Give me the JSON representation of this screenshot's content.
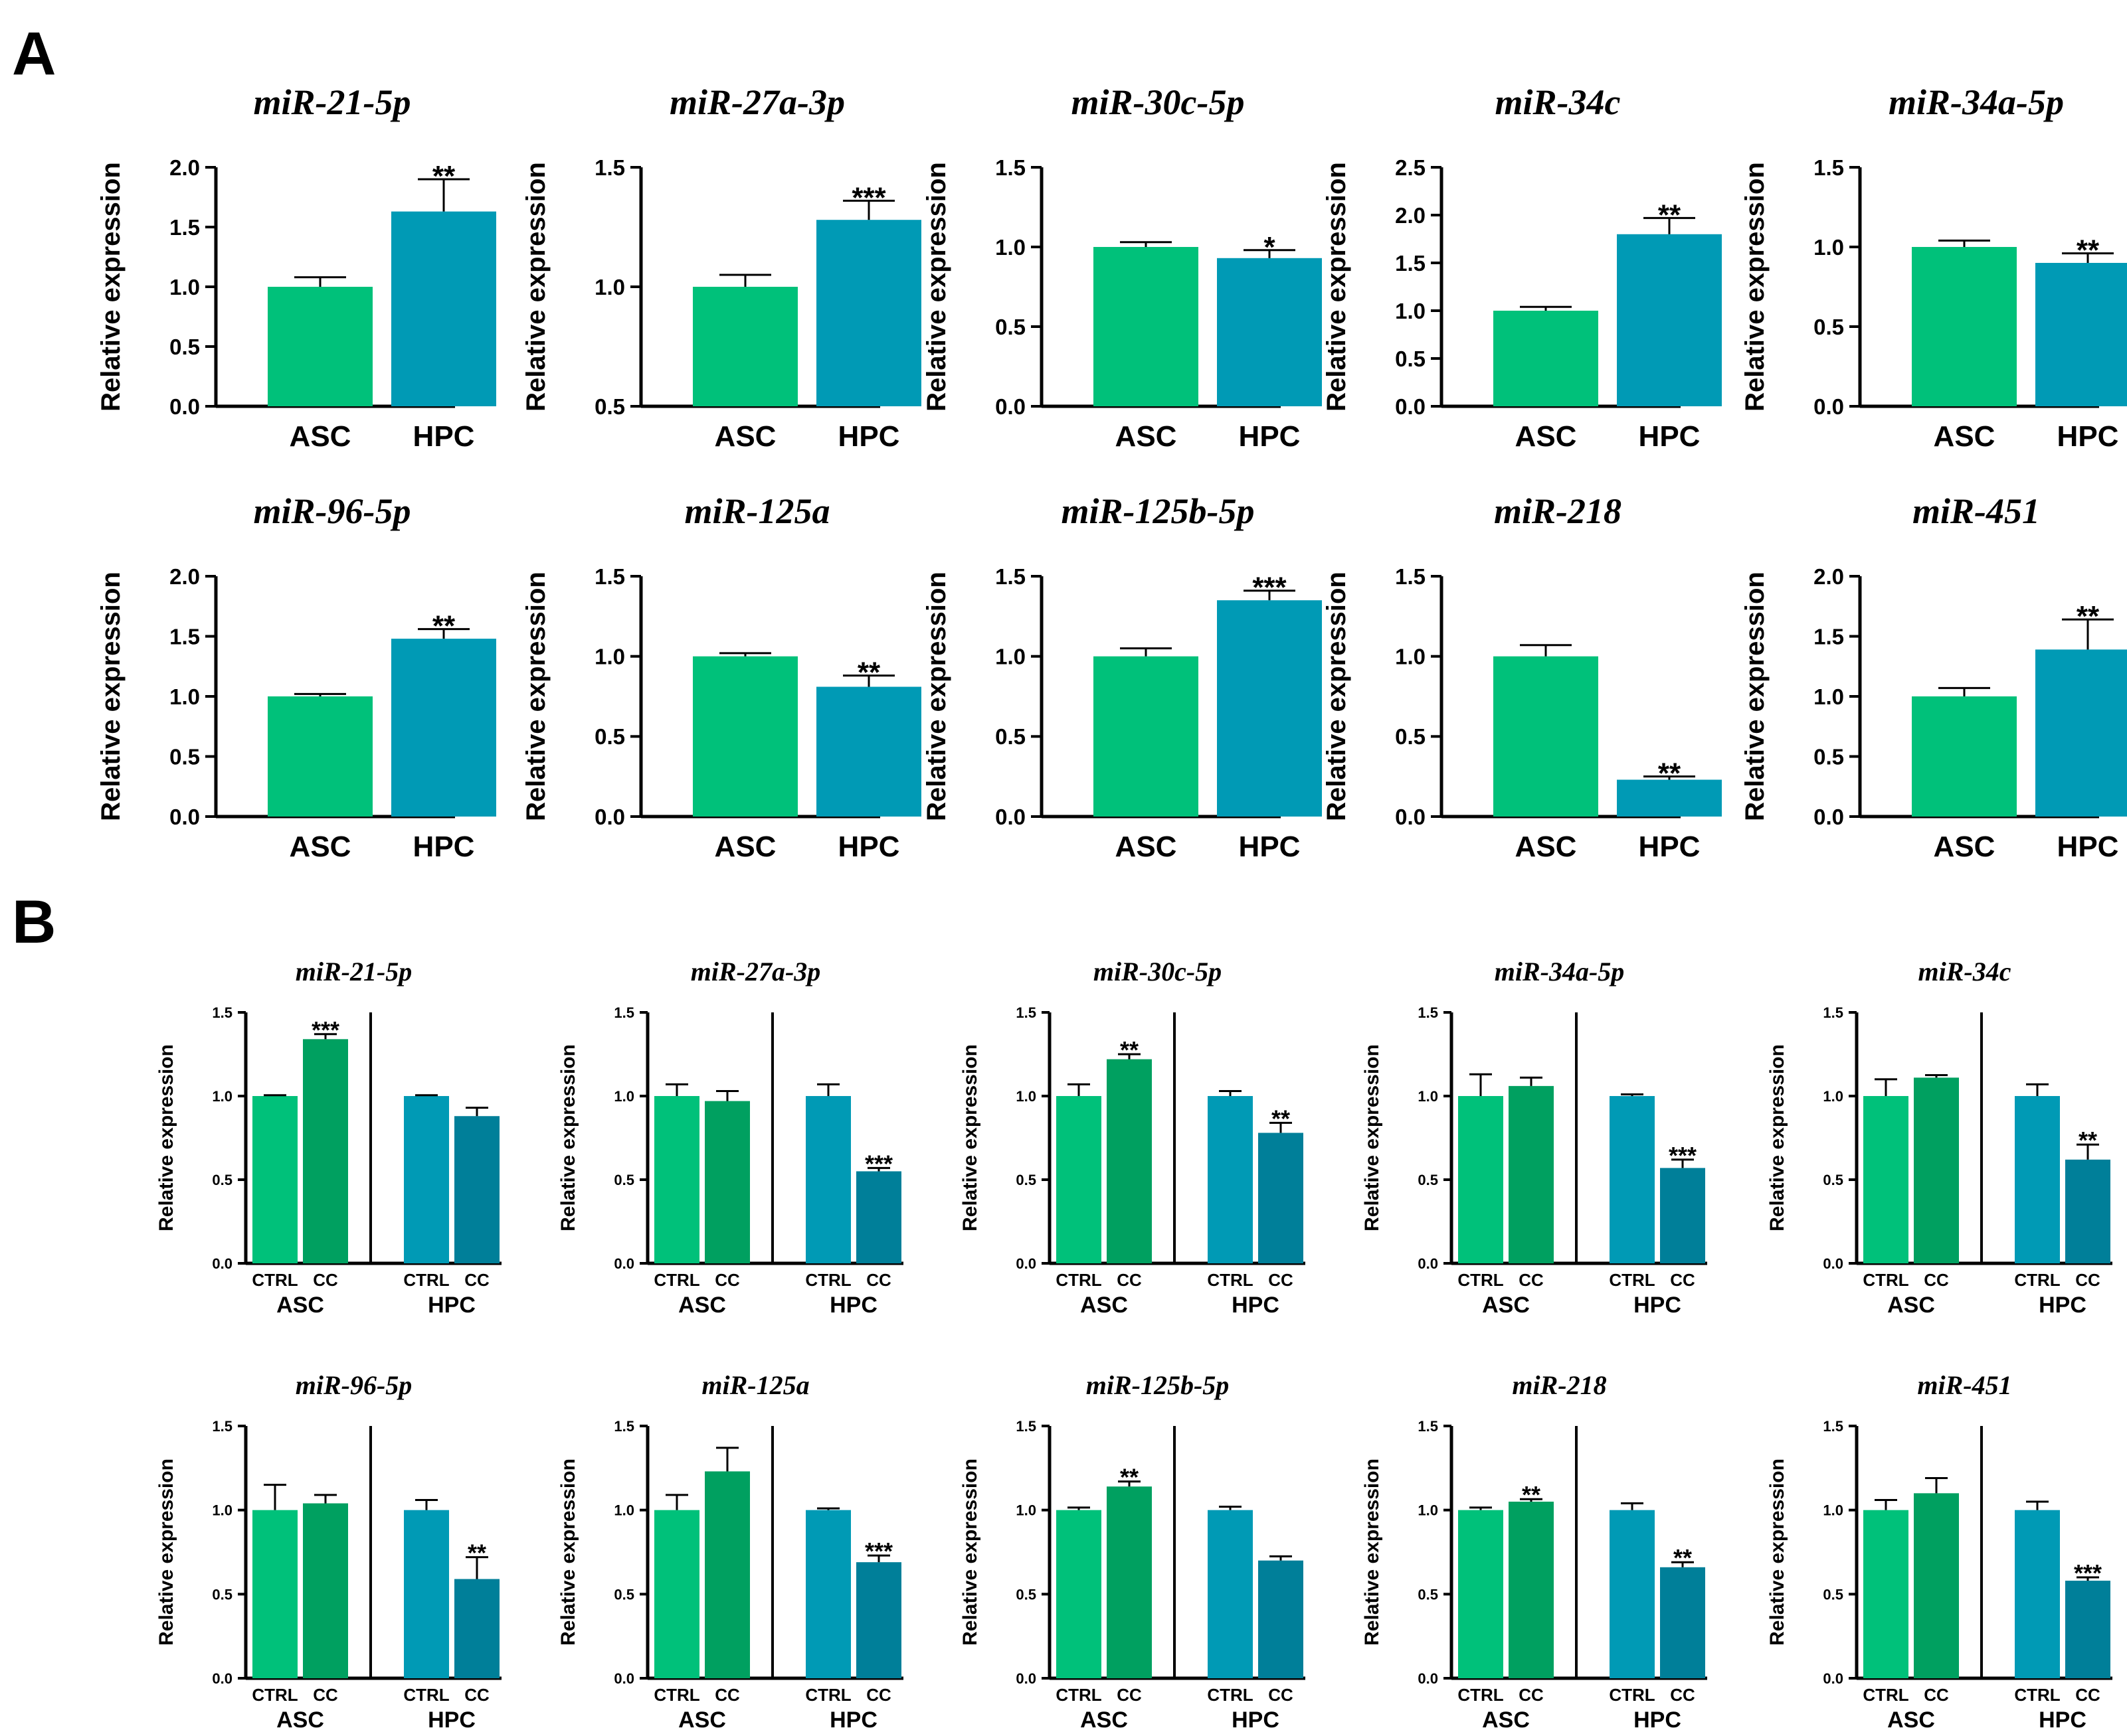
{
  "panels": [
    {
      "label": "A"
    },
    {
      "label": "B"
    }
  ],
  "colors": {
    "asc": "#00c17a",
    "hpc": "#009ab5",
    "asc_ctrl": "#00c17a",
    "asc_cc": "#00a060",
    "hpc_ctrl": "#009ab5",
    "hpc_cc": "#007f99",
    "axis": "#000000"
  },
  "chart_data": [
    {
      "panel": "A",
      "type": "bar",
      "title": "miR-21-5p",
      "ylabel": "Relative expression",
      "ylim": [
        0,
        2.0
      ],
      "yticks": [
        "0.0",
        "0.5",
        "1.0",
        "1.5",
        "2.0"
      ],
      "categories": [
        "ASC",
        "HPC"
      ],
      "values": [
        1.0,
        1.63
      ],
      "errors": [
        0.08,
        0.27
      ],
      "significance": [
        "",
        "**"
      ]
    },
    {
      "panel": "A",
      "type": "bar",
      "title": "miR-27a-3p",
      "ylabel": "Relative expression",
      "ylim": [
        0.5,
        1.5
      ],
      "yticks": [
        "0.5",
        "1.0",
        "1.5"
      ],
      "categories": [
        "ASC",
        "HPC"
      ],
      "values": [
        1.0,
        1.28
      ],
      "errors": [
        0.05,
        0.08
      ],
      "significance": [
        "",
        "***"
      ]
    },
    {
      "panel": "A",
      "type": "bar",
      "title": "miR-30c-5p",
      "ylabel": "Relative expression",
      "ylim": [
        0,
        1.5
      ],
      "yticks": [
        "0.0",
        "0.5",
        "1.0",
        "1.5"
      ],
      "categories": [
        "ASC",
        "HPC"
      ],
      "values": [
        1.0,
        0.93
      ],
      "errors": [
        0.03,
        0.05
      ],
      "significance": [
        "",
        "*"
      ]
    },
    {
      "panel": "A",
      "type": "bar",
      "title": "miR-34c",
      "ylabel": "Relative expression",
      "ylim": [
        0,
        2.5
      ],
      "yticks": [
        "0.0",
        "0.5",
        "1.0",
        "1.5",
        "2.0",
        "2.5"
      ],
      "categories": [
        "ASC",
        "HPC"
      ],
      "values": [
        1.0,
        1.8
      ],
      "errors": [
        0.04,
        0.17
      ],
      "significance": [
        "",
        "**"
      ]
    },
    {
      "panel": "A",
      "type": "bar",
      "title": "miR-34a-5p",
      "ylabel": "Relative expression",
      "ylim": [
        0,
        1.5
      ],
      "yticks": [
        "0.0",
        "0.5",
        "1.0",
        "1.5"
      ],
      "categories": [
        "ASC",
        "HPC"
      ],
      "values": [
        1.0,
        0.9
      ],
      "errors": [
        0.04,
        0.06
      ],
      "significance": [
        "",
        "**"
      ]
    },
    {
      "panel": "A",
      "type": "bar",
      "title": "miR-96-5p",
      "ylabel": "Relative expression",
      "ylim": [
        0,
        2.0
      ],
      "yticks": [
        "0.0",
        "0.5",
        "1.0",
        "1.5",
        "2.0"
      ],
      "categories": [
        "ASC",
        "HPC"
      ],
      "values": [
        1.0,
        1.48
      ],
      "errors": [
        0.02,
        0.08
      ],
      "significance": [
        "",
        "**"
      ]
    },
    {
      "panel": "A",
      "type": "bar",
      "title": "miR-125a",
      "ylabel": "Relative expression",
      "ylim": [
        0,
        1.5
      ],
      "yticks": [
        "0.0",
        "0.5",
        "1.0",
        "1.5"
      ],
      "categories": [
        "ASC",
        "HPC"
      ],
      "values": [
        1.0,
        0.81
      ],
      "errors": [
        0.02,
        0.07
      ],
      "significance": [
        "",
        "**"
      ]
    },
    {
      "panel": "A",
      "type": "bar",
      "title": "miR-125b-5p",
      "ylabel": "Relative expression",
      "ylim": [
        0,
        1.5
      ],
      "yticks": [
        "0.0",
        "0.5",
        "1.0",
        "1.5"
      ],
      "categories": [
        "ASC",
        "HPC"
      ],
      "values": [
        1.0,
        1.35
      ],
      "errors": [
        0.05,
        0.06
      ],
      "significance": [
        "",
        "***"
      ]
    },
    {
      "panel": "A",
      "type": "bar",
      "title": "miR-218",
      "ylabel": "Relative expression",
      "ylim": [
        0,
        1.5
      ],
      "yticks": [
        "0.0",
        "0.5",
        "1.0",
        "1.5"
      ],
      "categories": [
        "ASC",
        "HPC"
      ],
      "values": [
        1.0,
        0.23
      ],
      "errors": [
        0.07,
        0.02
      ],
      "significance": [
        "",
        "**"
      ]
    },
    {
      "panel": "A",
      "type": "bar",
      "title": "miR-451",
      "ylabel": "Relative expression",
      "ylim": [
        0,
        2.0
      ],
      "yticks": [
        "0.0",
        "0.5",
        "1.0",
        "1.5",
        "2.0"
      ],
      "categories": [
        "ASC",
        "HPC"
      ],
      "values": [
        1.0,
        1.39
      ],
      "errors": [
        0.07,
        0.25
      ],
      "significance": [
        "",
        "**"
      ]
    },
    {
      "panel": "B",
      "type": "bar",
      "title": "miR-21-5p",
      "ylabel": "Relative expression",
      "ylim": [
        0,
        1.5
      ],
      "yticks": [
        "0.0",
        "0.5",
        "1.0",
        "1.5"
      ],
      "groups": [
        "ASC",
        "HPC"
      ],
      "categories": [
        "CTRL",
        "CC"
      ],
      "series": [
        {
          "name": "ASC",
          "values": [
            1.0,
            1.34
          ],
          "errors": [
            0.005,
            0.03
          ],
          "significance": [
            "",
            "***"
          ]
        },
        {
          "name": "HPC",
          "values": [
            1.0,
            0.88
          ],
          "errors": [
            0.005,
            0.05
          ],
          "significance": [
            "",
            ""
          ]
        }
      ]
    },
    {
      "panel": "B",
      "type": "bar",
      "title": "miR-27a-3p",
      "ylabel": "Relative expression",
      "ylim": [
        0,
        1.5
      ],
      "yticks": [
        "0.0",
        "0.5",
        "1.0",
        "1.5"
      ],
      "groups": [
        "ASC",
        "HPC"
      ],
      "categories": [
        "CTRL",
        "CC"
      ],
      "series": [
        {
          "name": "ASC",
          "values": [
            1.0,
            0.97
          ],
          "errors": [
            0.07,
            0.06
          ],
          "significance": [
            "",
            ""
          ]
        },
        {
          "name": "HPC",
          "values": [
            1.0,
            0.55
          ],
          "errors": [
            0.07,
            0.02
          ],
          "significance": [
            "",
            "***"
          ]
        }
      ]
    },
    {
      "panel": "B",
      "type": "bar",
      "title": "miR-30c-5p",
      "ylabel": "Relative expression",
      "ylim": [
        0,
        1.5
      ],
      "yticks": [
        "0.0",
        "0.5",
        "1.0",
        "1.5"
      ],
      "groups": [
        "ASC",
        "HPC"
      ],
      "categories": [
        "CTRL",
        "CC"
      ],
      "series": [
        {
          "name": "ASC",
          "values": [
            1.0,
            1.22
          ],
          "errors": [
            0.07,
            0.03
          ],
          "significance": [
            "",
            "**"
          ]
        },
        {
          "name": "HPC",
          "values": [
            1.0,
            0.78
          ],
          "errors": [
            0.03,
            0.06
          ],
          "significance": [
            "",
            "**"
          ]
        }
      ]
    },
    {
      "panel": "B",
      "type": "bar",
      "title": "miR-34a-5p",
      "ylabel": "Relative expression",
      "ylim": [
        0,
        1.5
      ],
      "yticks": [
        "0.0",
        "0.5",
        "1.0",
        "1.5"
      ],
      "groups": [
        "ASC",
        "HPC"
      ],
      "categories": [
        "CTRL",
        "CC"
      ],
      "series": [
        {
          "name": "ASC",
          "values": [
            1.0,
            1.06
          ],
          "errors": [
            0.13,
            0.05
          ],
          "significance": [
            "",
            ""
          ]
        },
        {
          "name": "HPC",
          "values": [
            1.0,
            0.57
          ],
          "errors": [
            0.01,
            0.05
          ],
          "significance": [
            "",
            "***"
          ]
        }
      ]
    },
    {
      "panel": "B",
      "type": "bar",
      "title": "miR-34c",
      "ylabel": "Relative expression",
      "ylim": [
        0,
        1.5
      ],
      "yticks": [
        "0.0",
        "0.5",
        "1.0",
        "1.5"
      ],
      "groups": [
        "ASC",
        "HPC"
      ],
      "categories": [
        "CTRL",
        "CC"
      ],
      "series": [
        {
          "name": "ASC",
          "values": [
            1.0,
            1.11
          ],
          "errors": [
            0.1,
            0.015
          ],
          "significance": [
            "",
            ""
          ]
        },
        {
          "name": "HPC",
          "values": [
            1.0,
            0.62
          ],
          "errors": [
            0.07,
            0.09
          ],
          "significance": [
            "",
            "**"
          ]
        }
      ]
    },
    {
      "panel": "B",
      "type": "bar",
      "title": "miR-96-5p",
      "ylabel": "Relative expression",
      "ylim": [
        0,
        1.5
      ],
      "yticks": [
        "0.0",
        "0.5",
        "1.0",
        "1.5"
      ],
      "groups": [
        "ASC",
        "HPC"
      ],
      "categories": [
        "CTRL",
        "CC"
      ],
      "series": [
        {
          "name": "ASC",
          "values": [
            1.0,
            1.04
          ],
          "errors": [
            0.15,
            0.05
          ],
          "significance": [
            "",
            ""
          ]
        },
        {
          "name": "HPC",
          "values": [
            1.0,
            0.59
          ],
          "errors": [
            0.06,
            0.13
          ],
          "significance": [
            "",
            "**"
          ]
        }
      ]
    },
    {
      "panel": "B",
      "type": "bar",
      "title": "miR-125a",
      "ylabel": "Relative expression",
      "ylim": [
        0,
        1.5
      ],
      "yticks": [
        "0.0",
        "0.5",
        "1.0",
        "1.5"
      ],
      "groups": [
        "ASC",
        "HPC"
      ],
      "categories": [
        "CTRL",
        "CC"
      ],
      "series": [
        {
          "name": "ASC",
          "values": [
            1.0,
            1.23
          ],
          "errors": [
            0.09,
            0.14
          ],
          "significance": [
            "",
            ""
          ]
        },
        {
          "name": "HPC",
          "values": [
            1.0,
            0.69
          ],
          "errors": [
            0.01,
            0.04
          ],
          "significance": [
            "",
            "***"
          ]
        }
      ]
    },
    {
      "panel": "B",
      "type": "bar",
      "title": "miR-125b-5p",
      "ylabel": "Relative expression",
      "ylim": [
        0,
        1.5
      ],
      "yticks": [
        "0.0",
        "0.5",
        "1.0",
        "1.5"
      ],
      "groups": [
        "ASC",
        "HPC"
      ],
      "categories": [
        "CTRL",
        "CC"
      ],
      "series": [
        {
          "name": "ASC",
          "values": [
            1.0,
            1.14
          ],
          "errors": [
            0.015,
            0.03
          ],
          "significance": [
            "",
            "**"
          ]
        },
        {
          "name": "HPC",
          "values": [
            1.0,
            0.7
          ],
          "errors": [
            0.02,
            0.025
          ],
          "significance": [
            "",
            ""
          ]
        }
      ]
    },
    {
      "panel": "B",
      "type": "bar",
      "title": "miR-218",
      "ylabel": "Relative expression",
      "ylim": [
        0,
        1.5
      ],
      "yticks": [
        "0.0",
        "0.5",
        "1.0",
        "1.5"
      ],
      "groups": [
        "ASC",
        "HPC"
      ],
      "categories": [
        "CTRL",
        "CC"
      ],
      "series": [
        {
          "name": "ASC",
          "values": [
            1.0,
            1.05
          ],
          "errors": [
            0.015,
            0.015
          ],
          "significance": [
            "",
            "**"
          ]
        },
        {
          "name": "HPC",
          "values": [
            1.0,
            0.66
          ],
          "errors": [
            0.04,
            0.03
          ],
          "significance": [
            "",
            "**"
          ]
        }
      ]
    },
    {
      "panel": "B",
      "type": "bar",
      "title": "miR-451",
      "ylabel": "Relative expression",
      "ylim": [
        0,
        1.5
      ],
      "yticks": [
        "0.0",
        "0.5",
        "1.0",
        "1.5"
      ],
      "groups": [
        "ASC",
        "HPC"
      ],
      "categories": [
        "CTRL",
        "CC"
      ],
      "series": [
        {
          "name": "ASC",
          "values": [
            1.0,
            1.1
          ],
          "errors": [
            0.06,
            0.09
          ],
          "significance": [
            "",
            ""
          ]
        },
        {
          "name": "HPC",
          "values": [
            1.0,
            0.58
          ],
          "errors": [
            0.05,
            0.02
          ],
          "significance": [
            "",
            "***"
          ]
        }
      ]
    }
  ]
}
